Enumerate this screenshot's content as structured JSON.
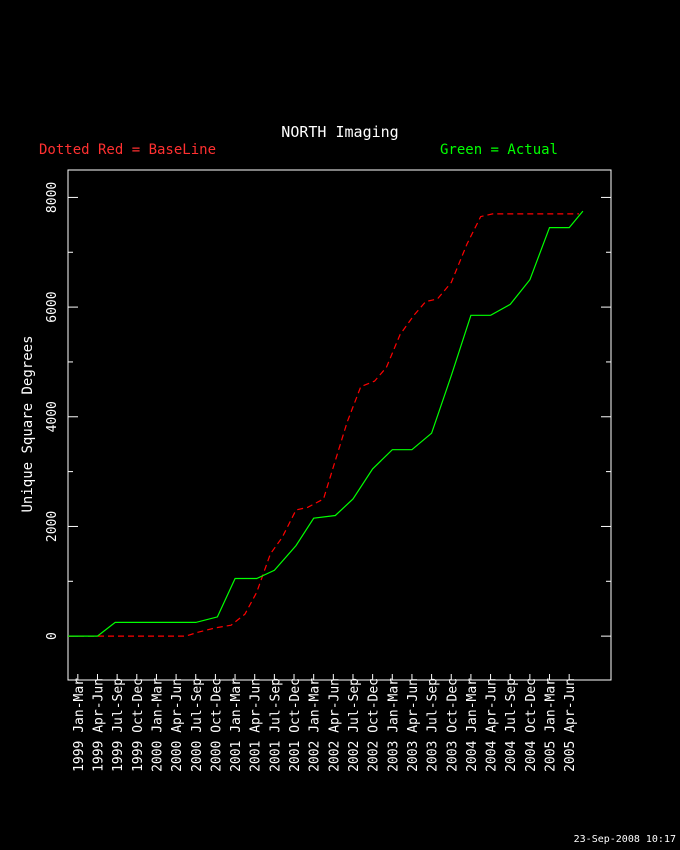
{
  "chart_data": {
    "type": "line",
    "title": "NORTH Imaging",
    "xlabel": "",
    "ylabel": "Unique Square Degrees",
    "ylim": [
      -800,
      8500
    ],
    "yticks": [
      0,
      2000,
      4000,
      6000,
      8000
    ],
    "ytick_labels": [
      "0",
      "2000",
      "4000",
      "6000",
      "8000"
    ],
    "grid": false,
    "categories": [
      "1999 Jan-Mar",
      "1999 Apr-Jun",
      "1999 Jul-Sep",
      "1999 Oct-Dec",
      "2000 Jan-Mar",
      "2000 Apr-Jun",
      "2000 Jul-Sep",
      "2000 Oct-Dec",
      "2001 Jan-Mar",
      "2001 Apr-Jun",
      "2001 Jul-Sep",
      "2001 Oct-Dec",
      "2002 Jan-Mar",
      "2002 Apr-Jun",
      "2002 Jul-Sep",
      "2002 Oct-Dec",
      "2003 Jan-Mar",
      "2003 Apr-Jun",
      "2003 Jul-Sep",
      "2003 Oct-Dec",
      "2004 Jan-Mar",
      "2004 Apr-Jun",
      "2004 Jul-Sep",
      "2004 Oct-Dec",
      "2005 Jan-Mar",
      "2005 Apr-Jun"
    ],
    "series": [
      {
        "name": "BaseLine",
        "color": "#ff0000",
        "style": "dashed",
        "x": [
          0,
          1,
          2,
          3,
          4,
          5,
          6,
          6.6,
          7.5,
          8.3,
          9,
          9.6,
          10.3,
          10.9,
          11.6,
          12.2,
          13.0,
          13.6,
          14.2,
          14.9,
          15.6,
          16.2,
          16.9,
          17.6,
          18.2,
          18.8,
          19.5,
          20.3,
          21.0,
          21.6,
          22.3,
          23,
          24,
          25,
          26
        ],
        "values": [
          0,
          0,
          0,
          0,
          0,
          0,
          0,
          70,
          150,
          200,
          400,
          800,
          1500,
          1800,
          2300,
          2350,
          2500,
          3200,
          3900,
          4550,
          4650,
          4900,
          5500,
          5850,
          6100,
          6150,
          6450,
          7150,
          7650,
          7700,
          7700,
          7700,
          7700,
          7700,
          7700
        ]
      },
      {
        "name": "Actual",
        "color": "#00ff00",
        "style": "solid",
        "x": [
          0,
          1.5,
          2.4,
          3.3,
          5.5,
          6.5,
          7.6,
          8.5,
          9.6,
          10.5,
          11.6,
          12.5,
          13.6,
          14.5,
          15.5,
          16.5,
          17.5,
          18.5,
          19.5,
          20.5,
          21.5,
          22.5,
          23.5,
          24.5,
          25.5,
          26.2
        ],
        "values": [
          0,
          0,
          250,
          250,
          250,
          250,
          350,
          1050,
          1050,
          1200,
          1650,
          2150,
          2200,
          2500,
          3050,
          3400,
          3400,
          3700,
          4750,
          5850,
          5850,
          6050,
          6500,
          7450,
          7450,
          7750
        ]
      }
    ],
    "legend_left": "Dotted Red = BaseLine",
    "legend_right": "Green = Actual",
    "timestamp": "23-Sep-2008 10:17"
  }
}
